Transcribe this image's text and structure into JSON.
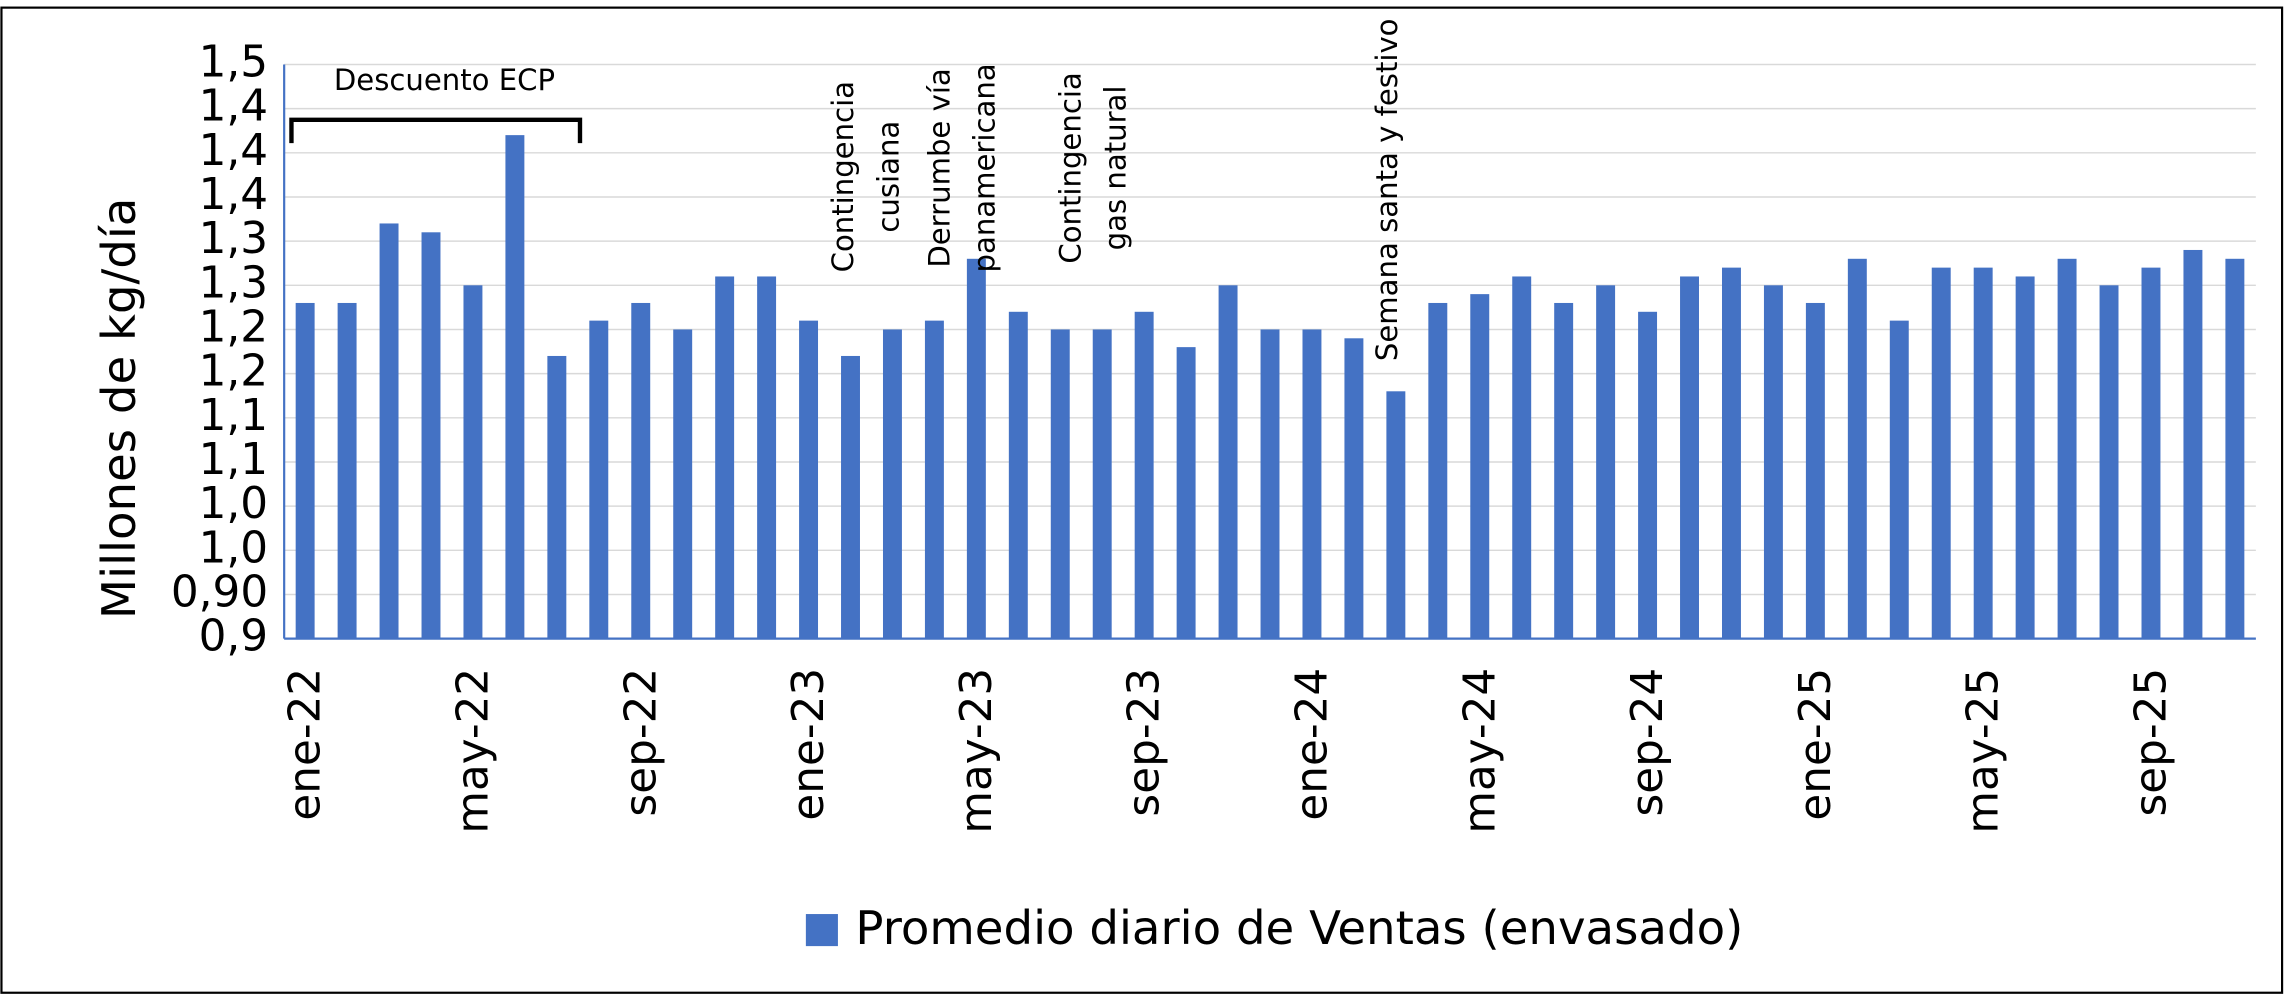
{
  "chart_data": {
    "type": "bar",
    "y_label": "Millones de kg/día",
    "categories": [
      "ene-22",
      null,
      null,
      null,
      "may-22",
      null,
      null,
      null,
      "sep-22",
      null,
      null,
      null,
      "ene-23",
      null,
      null,
      null,
      "may-23",
      null,
      null,
      null,
      "sep-23",
      null,
      null,
      null,
      "ene-24",
      null,
      null,
      null,
      "may-24",
      null,
      null,
      null,
      "sep-24",
      null,
      null,
      null,
      "ene-25",
      null,
      null,
      null,
      "may-25",
      null,
      null,
      null,
      "sep-25",
      null,
      null
    ],
    "series": [
      {
        "name": "Promedio diario de Ventas (envasado)",
        "color": "#4472c4",
        "values": [
          1.23,
          1.23,
          1.32,
          1.31,
          1.25,
          1.42,
          1.17,
          1.21,
          1.23,
          1.2,
          1.26,
          1.26,
          1.21,
          1.17,
          1.2,
          1.21,
          1.28,
          1.22,
          1.2,
          1.2,
          1.22,
          1.18,
          1.25,
          1.2,
          1.2,
          1.19,
          1.13,
          1.23,
          1.24,
          1.26,
          1.23,
          1.25,
          1.22,
          1.26,
          1.27,
          1.25,
          1.23,
          1.28,
          1.21,
          1.27,
          1.27,
          1.26,
          1.28,
          1.25,
          1.27,
          1.29,
          1.28
        ]
      }
    ],
    "ylim": [
      0.85,
      1.5
    ],
    "yticks": [
      {
        "value": 0.85,
        "label": "0,9"
      },
      {
        "value": 0.9,
        "label": "0,90"
      },
      {
        "value": 0.95,
        "label": "1,0"
      },
      {
        "value": 1.0,
        "label": "1,0"
      },
      {
        "value": 1.05,
        "label": "1,1"
      },
      {
        "value": 1.1,
        "label": "1,1"
      },
      {
        "value": 1.15,
        "label": "1,2"
      },
      {
        "value": 1.2,
        "label": "1,2"
      },
      {
        "value": 1.25,
        "label": "1,3"
      },
      {
        "value": 1.3,
        "label": "1,3"
      },
      {
        "value": 1.35,
        "label": "1,4"
      },
      {
        "value": 1.4,
        "label": "1,4"
      },
      {
        "value": 1.45,
        "label": "1,4"
      },
      {
        "value": 1.5,
        "label": "1,5"
      }
    ],
    "grid": true,
    "legend": "bottom",
    "annotations": [
      {
        "text": [
          "Descuento ECP"
        ]
      },
      {
        "text": [
          "Contingencia",
          "cusiana"
        ]
      },
      {
        "text": [
          "Derrumbe vía",
          "panamericana"
        ]
      },
      {
        "text": [
          "Contingencia",
          "gas natural"
        ]
      },
      {
        "text": [
          "Semana santa y festivo"
        ]
      }
    ]
  }
}
